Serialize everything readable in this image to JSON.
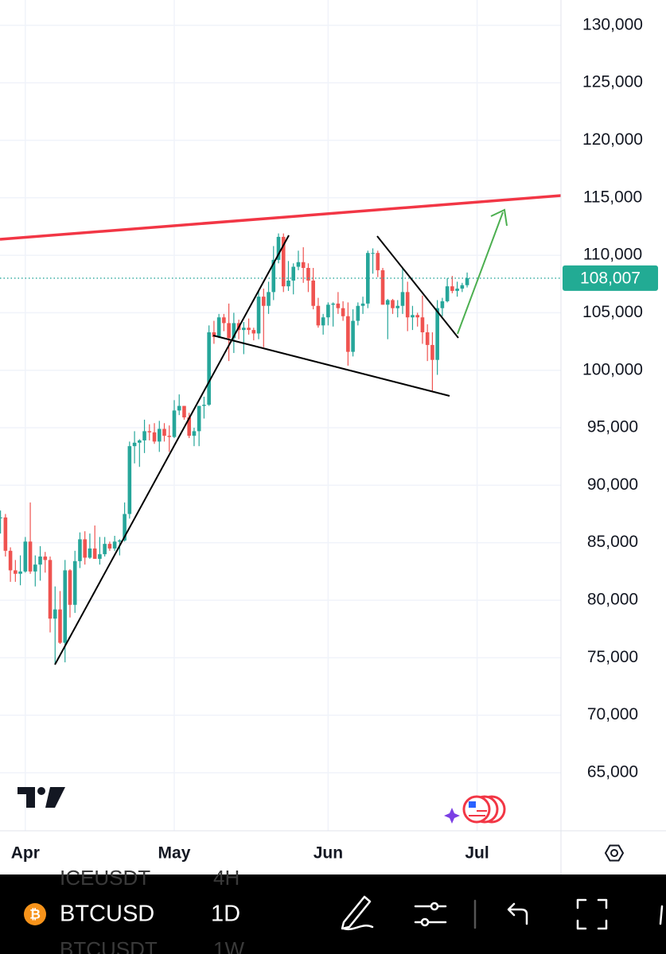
{
  "chart_data": {
    "type": "candlestick",
    "x": [
      -5,
      -4,
      -3,
      -2,
      -1,
      0,
      1,
      2,
      3,
      4,
      5,
      6,
      7,
      8,
      9,
      10,
      11,
      12,
      13,
      14,
      15,
      16,
      17,
      18,
      19,
      20,
      21,
      22,
      23,
      24,
      25,
      26,
      27,
      28,
      29,
      30,
      31,
      32,
      33,
      34,
      35,
      36,
      37,
      38,
      39,
      40,
      41,
      42,
      43,
      44,
      45,
      46,
      47,
      48,
      49,
      50,
      51,
      52,
      53,
      54,
      55,
      56,
      57,
      58,
      59,
      60,
      61,
      62,
      63,
      64,
      65,
      66,
      67,
      68,
      69,
      70,
      71,
      72,
      73,
      74,
      75,
      76,
      77,
      78,
      79,
      80,
      81,
      82,
      83,
      84,
      85,
      86,
      87,
      88,
      89
    ],
    "open": [
      87200,
      87200,
      84300,
      82600,
      82300,
      82500,
      85100,
      82500,
      83100,
      83800,
      83500,
      78400,
      79200,
      76300,
      82600,
      79600,
      83400,
      85300,
      83700,
      84500,
      83600,
      84000,
      84900,
      84500,
      85100,
      85200,
      87500,
      93400,
      93700,
      93900,
      94700,
      94600,
      93800,
      94900,
      94300,
      94200,
      96500,
      96900,
      95900,
      94300,
      94700,
      96900,
      97000,
      103300,
      102900,
      104600,
      104100,
      102800,
      104100,
      103500,
      103700,
      103500,
      103200,
      106400,
      105600,
      106800,
      109600,
      111600,
      107300,
      107800,
      109000,
      109400,
      108900,
      107800,
      105600,
      103900,
      104600,
      105700,
      105800,
      105400,
      104700,
      101600,
      104300,
      105600,
      105800,
      110200,
      110200,
      108700,
      105700,
      106100,
      105400,
      105600,
      106800,
      104600,
      104800,
      104600,
      103300,
      102200,
      100900,
      105400,
      106000,
      107300,
      106900,
      107100,
      107400
    ],
    "high": [
      87800,
      87500,
      84600,
      83500,
      83900,
      85500,
      88500,
      83900,
      84700,
      84200,
      83800,
      81200,
      80800,
      83500,
      82700,
      84300,
      85900,
      86000,
      85800,
      86500,
      85500,
      85500,
      85100,
      85600,
      85300,
      88500,
      93800,
      94700,
      94000,
      95700,
      95300,
      95400,
      95600,
      95400,
      95200,
      97400,
      97900,
      96900,
      96300,
      95000,
      96900,
      97700,
      103900,
      104300,
      104900,
      104900,
      105800,
      105000,
      104400,
      104200,
      104500,
      103700,
      107000,
      107100,
      107700,
      110800,
      111900,
      111900,
      109500,
      109300,
      110400,
      110700,
      109300,
      108900,
      106300,
      104900,
      105900,
      105900,
      106800,
      106000,
      105900,
      105300,
      105900,
      106400,
      110400,
      110600,
      110400,
      108900,
      106200,
      106200,
      106100,
      108900,
      107700,
      105600,
      105000,
      106500,
      104000,
      103300,
      106100,
      106300,
      108000,
      108200,
      107700,
      107600,
      108500
    ],
    "low": [
      85800,
      83800,
      81600,
      81600,
      81300,
      82400,
      82300,
      81200,
      81700,
      82400,
      77200,
      74500,
      76200,
      74600,
      78500,
      78900,
      82800,
      83100,
      83600,
      83600,
      83100,
      83800,
      84300,
      84300,
      83900,
      85100,
      87100,
      91900,
      91600,
      92800,
      93900,
      93600,
      92900,
      93800,
      92900,
      94100,
      96100,
      95700,
      94100,
      93400,
      93400,
      95800,
      96900,
      102300,
      102800,
      103400,
      100800,
      101500,
      102700,
      101400,
      103100,
      102600,
      102700,
      102000,
      104900,
      106100,
      109300,
      106800,
      106900,
      106600,
      108700,
      107600,
      106800,
      105300,
      103700,
      103100,
      103900,
      103800,
      104900,
      104300,
      100400,
      101200,
      103900,
      104900,
      105400,
      108400,
      108100,
      105700,
      102700,
      104900,
      104600,
      104900,
      103400,
      103500,
      103800,
      102300,
      100800,
      98200,
      99600,
      104700,
      105900,
      106700,
      106400,
      106800,
      107200
    ],
    "close": [
      87200,
      84300,
      82600,
      82300,
      82500,
      85100,
      82500,
      83100,
      83800,
      83500,
      78400,
      79200,
      76300,
      82600,
      79600,
      83400,
      85300,
      83700,
      84500,
      83600,
      84000,
      84900,
      84500,
      85100,
      85200,
      87500,
      93400,
      93700,
      93900,
      94700,
      94600,
      93800,
      94900,
      94300,
      94200,
      96500,
      96900,
      95900,
      94300,
      94700,
      96900,
      97000,
      103300,
      102900,
      104600,
      104100,
      102800,
      104100,
      103500,
      103700,
      103500,
      103200,
      106400,
      105600,
      106800,
      109600,
      111600,
      107300,
      107800,
      109000,
      109400,
      108900,
      107800,
      105600,
      103900,
      104600,
      105700,
      105800,
      105400,
      104700,
      101600,
      104300,
      105600,
      105800,
      110200,
      110200,
      108700,
      105700,
      106100,
      105400,
      105600,
      106800,
      104600,
      104800,
      104600,
      103300,
      102200,
      100900,
      105400,
      106000,
      107300,
      106900,
      107100,
      107400,
      108007
    ],
    "up_color": "#26a69a",
    "down_color": "#ef5350",
    "xlim": [
      -5.1,
      107.9
    ],
    "xticks": [
      {
        "value": 0,
        "label": "Apr"
      },
      {
        "value": 30,
        "label": "May"
      },
      {
        "value": 61,
        "label": "Jun"
      },
      {
        "value": 91,
        "label": "Jul"
      }
    ],
    "ylim": [
      59950,
      132200
    ],
    "yticks": [
      {
        "value": 65000,
        "label": "65,000"
      },
      {
        "value": 70000,
        "label": "70,000"
      },
      {
        "value": 75000,
        "label": "75,000"
      },
      {
        "value": 80000,
        "label": "80,000"
      },
      {
        "value": 85000,
        "label": "85,000"
      },
      {
        "value": 90000,
        "label": "90,000"
      },
      {
        "value": 95000,
        "label": "95,000"
      },
      {
        "value": 100000,
        "label": "100,000"
      },
      {
        "value": 105000,
        "label": "105,000"
      },
      {
        "value": 110000,
        "label": "110,000"
      },
      {
        "value": 115000,
        "label": "115,000"
      },
      {
        "value": 120000,
        "label": "120,000"
      },
      {
        "value": 125000,
        "label": "125,000"
      },
      {
        "value": 130000,
        "label": "130,000"
      }
    ],
    "current_price": {
      "value": 108007,
      "label": "108,007"
    },
    "grid": true
  },
  "toolbar": {
    "symbol": "BTCUSD",
    "interval": "1D",
    "ghost_items": [
      "ICEUSDT",
      "4H",
      "BTCUSDT",
      "1W"
    ]
  }
}
